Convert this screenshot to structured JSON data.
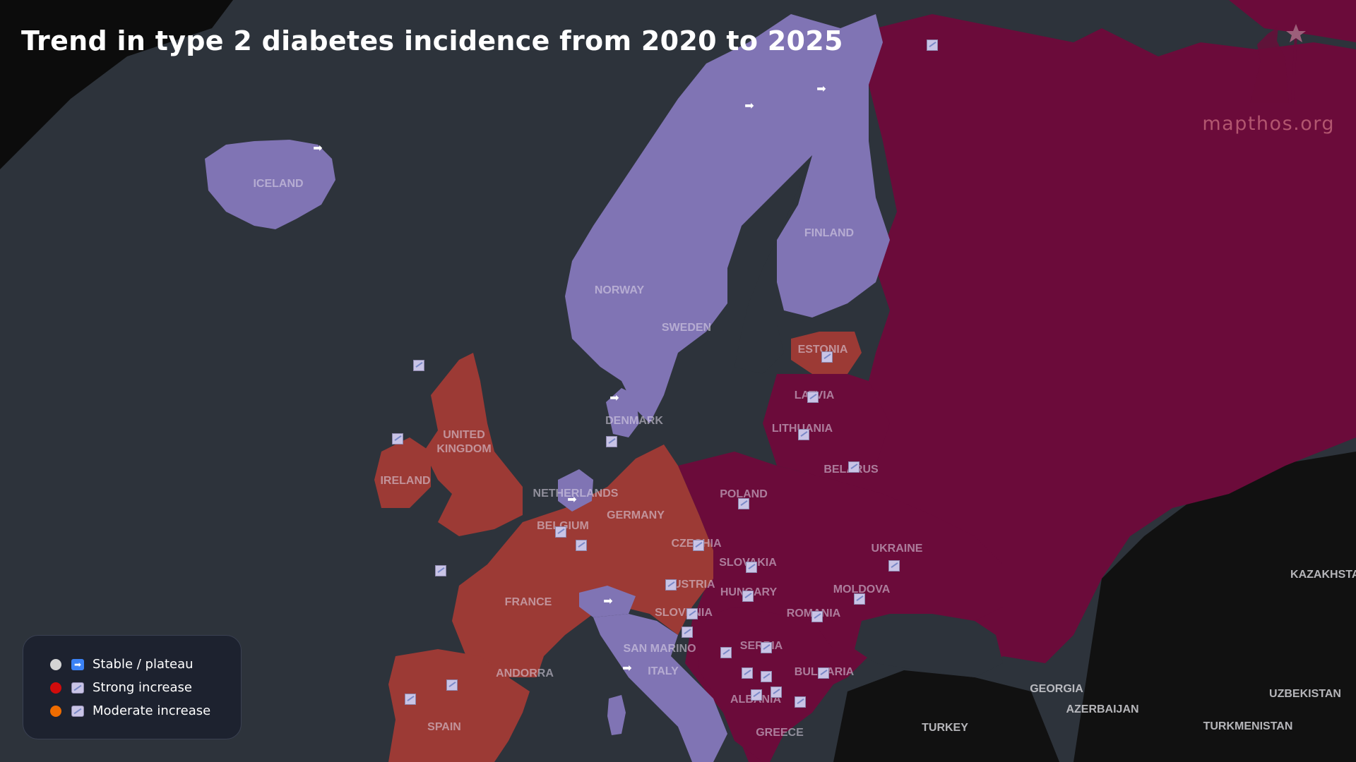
{
  "title": "Trend in type 2 diabetes incidence from 2020 to 2025",
  "brand": "mapthos.org",
  "colors": {
    "sea": "#2d333b",
    "outside": "#111111",
    "stable": "#8074b4",
    "strong": "#6b0b3a",
    "moderate": "#9c3a35"
  },
  "legend": [
    {
      "dot_color": "#d4d4d4",
      "icon": "arrow-right-icon",
      "label": "Stable / plateau"
    },
    {
      "dot_color": "#d10c0c",
      "icon": "trend-chart-icon",
      "label": "Strong increase"
    },
    {
      "dot_color": "#ef6c00",
      "icon": "trend-chart-icon",
      "label": "Moderate increase"
    }
  ],
  "country_labels": [
    "ICELAND",
    "NORWAY",
    "SWEDEN",
    "FINLAND",
    "ESTONIA",
    "LATVIA",
    "LITHUANIA",
    "BELARUS",
    "UNITED KINGDOM",
    "IRELAND",
    "DENMARK",
    "NETHERLANDS",
    "BELGIUM",
    "GERMANY",
    "POLAND",
    "CZECHIA",
    "SLOVAKIA",
    "AUSTRIA",
    "HUNGARY",
    "SLOVENIA",
    "FRANCE",
    "UKRAINE",
    "MOLDOVA",
    "ROMANIA",
    "SERBIA",
    "BULGARIA",
    "SAN MARINO",
    "ITALY",
    "ANDORRA",
    "SPAIN",
    "ALBANIA",
    "GREECE",
    "GEORGIA",
    "AZERBAIJAN",
    "TURKEY",
    "TURKMENISTAN",
    "UZBEKISTAN",
    "KAZAKHSTAN"
  ]
}
